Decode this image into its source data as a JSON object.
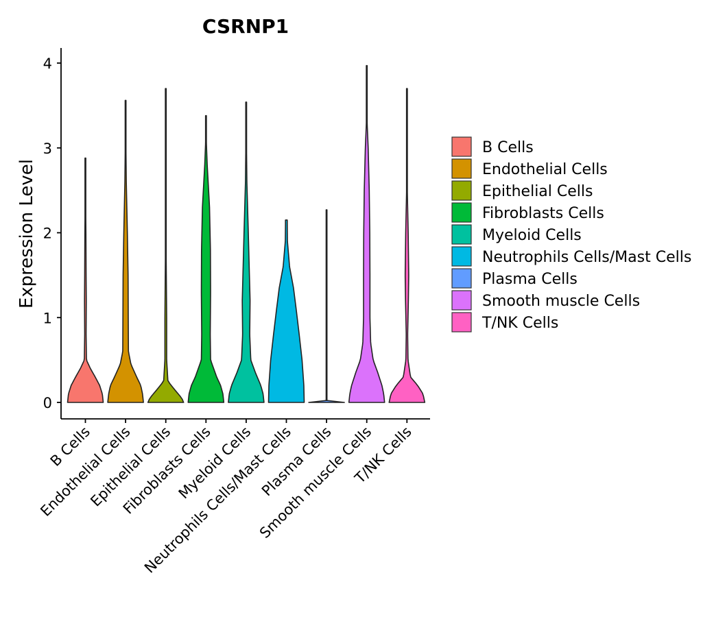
{
  "chart_data": {
    "type": "violin",
    "title": "CSRNP1",
    "xlabel": "",
    "ylabel": "Expression Level",
    "ylim": [
      0,
      4.18
    ],
    "yticks": [
      0,
      1,
      2,
      3,
      4
    ],
    "categories": [
      "B Cells",
      "Endothelial Cells",
      "Epithelial Cells",
      "Fibroblasts Cells",
      "Myeloid Cells",
      "Neutrophils Cells/Mast Cells",
      "Plasma Cells",
      "Smooth muscle Cells",
      "T/NK Cells"
    ],
    "colors": [
      "#F8766D",
      "#D39200",
      "#93AA00",
      "#00BA38",
      "#00C19F",
      "#00B9E3",
      "#619CFF",
      "#DB72FB",
      "#FF61C3"
    ],
    "max_values": [
      2.88,
      3.56,
      3.7,
      3.38,
      3.54,
      2.15,
      2.27,
      3.97,
      3.7
    ],
    "density_profiles": [
      [
        [
          0,
          1.0
        ],
        [
          0.1,
          0.95
        ],
        [
          0.2,
          0.8
        ],
        [
          0.3,
          0.55
        ],
        [
          0.4,
          0.28
        ],
        [
          0.5,
          0.06
        ],
        [
          0.8,
          0.04
        ],
        [
          1.2,
          0.05
        ],
        [
          1.5,
          0.04
        ],
        [
          2.0,
          0.03
        ],
        [
          2.5,
          0.01
        ],
        [
          2.88,
          0
        ]
      ],
      [
        [
          0,
          1.0
        ],
        [
          0.1,
          0.95
        ],
        [
          0.2,
          0.85
        ],
        [
          0.3,
          0.62
        ],
        [
          0.45,
          0.3
        ],
        [
          0.6,
          0.16
        ],
        [
          1.0,
          0.15
        ],
        [
          1.5,
          0.14
        ],
        [
          2.0,
          0.1
        ],
        [
          2.6,
          0.04
        ],
        [
          3.2,
          0.01
        ],
        [
          3.56,
          0
        ]
      ],
      [
        [
          0,
          1.0
        ],
        [
          0.05,
          0.9
        ],
        [
          0.15,
          0.5
        ],
        [
          0.25,
          0.12
        ],
        [
          0.5,
          0.05
        ],
        [
          1.0,
          0.05
        ],
        [
          1.5,
          0.03
        ],
        [
          2.0,
          0.01
        ],
        [
          3.0,
          0.005
        ],
        [
          3.7,
          0
        ]
      ],
      [
        [
          0,
          1.0
        ],
        [
          0.1,
          0.95
        ],
        [
          0.2,
          0.82
        ],
        [
          0.3,
          0.6
        ],
        [
          0.5,
          0.26
        ],
        [
          0.8,
          0.24
        ],
        [
          1.3,
          0.26
        ],
        [
          1.8,
          0.25
        ],
        [
          2.3,
          0.2
        ],
        [
          2.8,
          0.07
        ],
        [
          3.1,
          0.015
        ],
        [
          3.38,
          0
        ]
      ],
      [
        [
          0,
          1.0
        ],
        [
          0.1,
          0.95
        ],
        [
          0.2,
          0.82
        ],
        [
          0.35,
          0.52
        ],
        [
          0.5,
          0.26
        ],
        [
          0.8,
          0.2
        ],
        [
          1.2,
          0.22
        ],
        [
          1.6,
          0.17
        ],
        [
          2.0,
          0.12
        ],
        [
          2.6,
          0.04
        ],
        [
          3.2,
          0.01
        ],
        [
          3.54,
          0
        ]
      ],
      [
        [
          0,
          1.0
        ],
        [
          0.2,
          0.98
        ],
        [
          0.5,
          0.88
        ],
        [
          0.8,
          0.72
        ],
        [
          1.1,
          0.55
        ],
        [
          1.35,
          0.4
        ],
        [
          1.6,
          0.18
        ],
        [
          1.9,
          0.06
        ],
        [
          2.1,
          0.05
        ],
        [
          2.15,
          0.05
        ]
      ],
      [
        [
          0,
          1.0
        ],
        [
          0.01,
          0.02
        ],
        [
          2.27,
          0
        ]
      ],
      [
        [
          0,
          1.0
        ],
        [
          0.1,
          0.95
        ],
        [
          0.2,
          0.85
        ],
        [
          0.35,
          0.62
        ],
        [
          0.5,
          0.36
        ],
        [
          0.7,
          0.22
        ],
        [
          1.0,
          0.18
        ],
        [
          1.5,
          0.18
        ],
        [
          2.0,
          0.17
        ],
        [
          2.5,
          0.14
        ],
        [
          3.0,
          0.08
        ],
        [
          3.3,
          0.02
        ],
        [
          3.97,
          0
        ]
      ],
      [
        [
          0,
          1.0
        ],
        [
          0.1,
          0.9
        ],
        [
          0.2,
          0.6
        ],
        [
          0.3,
          0.2
        ],
        [
          0.5,
          0.06
        ],
        [
          0.8,
          0.04
        ],
        [
          1.2,
          0.08
        ],
        [
          1.5,
          0.1
        ],
        [
          2.0,
          0.07
        ],
        [
          2.5,
          0.02
        ],
        [
          3.0,
          0.01
        ],
        [
          3.7,
          0
        ]
      ]
    ],
    "legend": {
      "position": "right",
      "entries": [
        "B Cells",
        "Endothelial Cells",
        "Epithelial Cells",
        "Fibroblasts Cells",
        "Myeloid Cells",
        "Neutrophils Cells/Mast Cells",
        "Plasma Cells",
        "Smooth muscle Cells",
        "T/NK Cells"
      ]
    }
  }
}
